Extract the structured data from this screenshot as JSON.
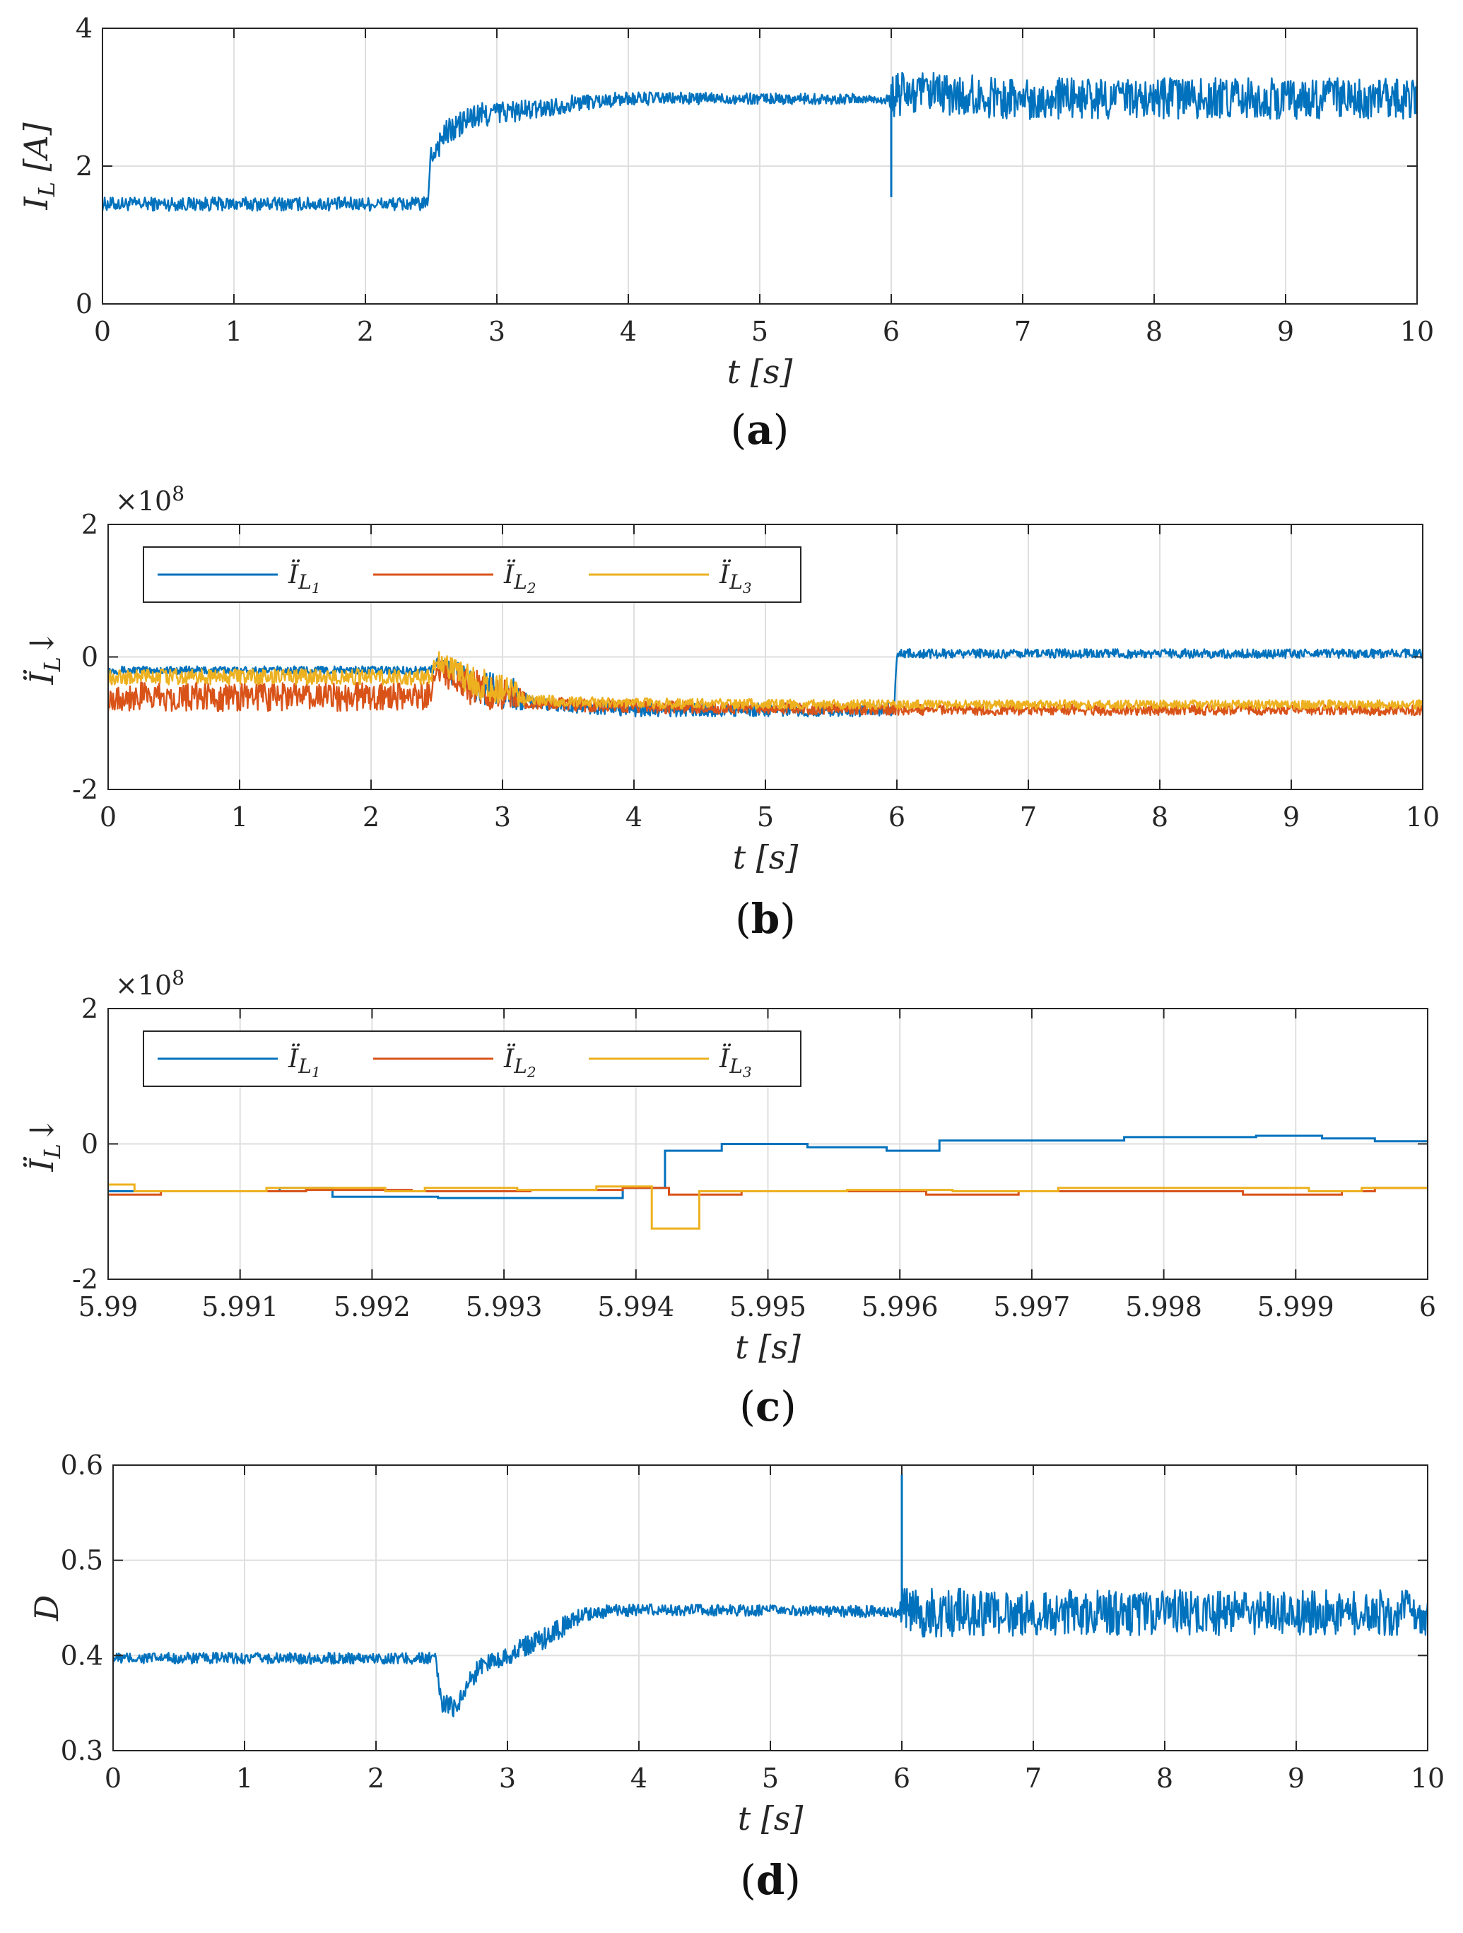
{
  "chart_data": [
    {
      "panel": "a",
      "type": "line",
      "caption": "a",
      "xlabel": "t [s]",
      "ylabel": "I_L [A]",
      "xlim": [
        0,
        10
      ],
      "ylim": [
        0,
        4
      ],
      "xticks": [
        "0",
        "1",
        "2",
        "3",
        "4",
        "5",
        "6",
        "7",
        "8",
        "9",
        "10"
      ],
      "yticks": [
        "0",
        "2",
        "4"
      ],
      "grid": true,
      "series": [
        {
          "name": "I_L",
          "color": "#0072BD",
          "x": [
            0,
            2.47,
            2.5,
            2.6,
            2.8,
            3.0,
            3.3,
            3.6,
            4.0,
            5.0,
            5.98,
            6.0,
            6.05,
            7.0,
            10.0
          ],
          "mid": [
            1.45,
            1.45,
            2.15,
            2.45,
            2.7,
            2.78,
            2.82,
            2.92,
            2.98,
            2.98,
            2.97,
            2.95,
            3.05,
            2.98,
            2.98
          ],
          "band": [
            0.1,
            0.1,
            0.2,
            0.2,
            0.2,
            0.18,
            0.14,
            0.12,
            0.1,
            0.08,
            0.08,
            0.34,
            0.34,
            0.3,
            0.3
          ]
        }
      ],
      "annotations": [
        {
          "type": "spike",
          "x": 6.0,
          "to": 1.55
        }
      ]
    },
    {
      "panel": "b",
      "type": "line",
      "caption": "b",
      "xlabel": "t [s]",
      "ylabel": "Ï_L↓",
      "multiplier": "×10^8",
      "xlim": [
        0,
        10
      ],
      "ylim": [
        -2,
        2
      ],
      "xticks": [
        "0",
        "1",
        "2",
        "3",
        "4",
        "5",
        "6",
        "7",
        "8",
        "9",
        "10"
      ],
      "yticks": [
        "-2",
        "0",
        "2"
      ],
      "grid": true,
      "legend": {
        "placement": "top-left",
        "entries": [
          "Ï_L1",
          "Ï_L2",
          "Ï_L3"
        ]
      },
      "series": [
        {
          "name": "Ï_L1",
          "color": "#0072BD",
          "x": [
            0,
            2.45,
            2.5,
            2.8,
            3.1,
            3.2,
            4.0,
            5.0,
            5.98,
            6.0,
            10.0
          ],
          "mid": [
            -0.2,
            -0.2,
            -0.1,
            -0.45,
            -0.55,
            -0.7,
            -0.8,
            -0.8,
            -0.8,
            0.05,
            0.05
          ],
          "band": [
            0.06,
            0.06,
            0.15,
            0.25,
            0.25,
            0.1,
            0.1,
            0.1,
            0.1,
            0.07,
            0.07
          ]
        },
        {
          "name": "Ï_L2",
          "color": "#D95319",
          "x": [
            0,
            2.45,
            2.5,
            2.8,
            3.1,
            3.2,
            4.0,
            6.0,
            10.0
          ],
          "mid": [
            -0.6,
            -0.6,
            -0.2,
            -0.5,
            -0.6,
            -0.7,
            -0.75,
            -0.8,
            -0.8
          ],
          "band": [
            0.22,
            0.22,
            0.18,
            0.3,
            0.2,
            0.1,
            0.1,
            0.08,
            0.08
          ]
        },
        {
          "name": "Ï_L3",
          "color": "#EDB120",
          "x": [
            0,
            2.45,
            2.5,
            2.8,
            3.1,
            3.2,
            4.0,
            6.0,
            10.0
          ],
          "mid": [
            -0.3,
            -0.3,
            -0.05,
            -0.4,
            -0.55,
            -0.65,
            -0.7,
            -0.72,
            -0.72
          ],
          "band": [
            0.12,
            0.12,
            0.15,
            0.25,
            0.2,
            0.08,
            0.08,
            0.07,
            0.07
          ]
        }
      ]
    },
    {
      "panel": "c",
      "type": "line",
      "caption": "c",
      "xlabel": "t [s]",
      "ylabel": "Ï_L↓",
      "multiplier": "×10^8",
      "xlim": [
        5.99,
        6.0
      ],
      "ylim": [
        -2,
        2
      ],
      "xticks": [
        "5.99",
        "5.991",
        "5.992",
        "5.993",
        "5.994",
        "5.995",
        "5.996",
        "5.997",
        "5.998",
        "5.999",
        "6"
      ],
      "yticks": [
        "-2",
        "0",
        "2"
      ],
      "grid": true,
      "legend": {
        "placement": "top-left",
        "entries": [
          "Ï_L1",
          "Ï_L2",
          "Ï_L3"
        ]
      },
      "series": [
        {
          "name": "Ï_L1",
          "color": "#0072BD",
          "step": true,
          "x": [
            5.99,
            5.9913,
            5.9917,
            5.9925,
            5.9934,
            5.9939,
            5.99422,
            5.99465,
            5.9953,
            5.9959,
            5.9963,
            5.9968,
            5.9977,
            5.9983,
            5.9987,
            5.9992,
            5.9996,
            6.0
          ],
          "y": [
            -0.7,
            -0.65,
            -0.78,
            -0.8,
            -0.8,
            -0.65,
            -0.1,
            0.0,
            -0.05,
            -0.1,
            0.05,
            0.05,
            0.1,
            0.1,
            0.12,
            0.08,
            0.04,
            0.04
          ]
        },
        {
          "name": "Ï_L2",
          "color": "#D95319",
          "step": true,
          "x": [
            5.99,
            5.9904,
            5.9915,
            5.9923,
            5.9932,
            5.9939,
            5.99425,
            5.9948,
            5.9955,
            5.9962,
            5.9969,
            5.9978,
            5.9986,
            5.99935,
            5.9996,
            6.0
          ],
          "y": [
            -0.75,
            -0.7,
            -0.68,
            -0.7,
            -0.68,
            -0.65,
            -0.75,
            -0.7,
            -0.7,
            -0.75,
            -0.7,
            -0.7,
            -0.75,
            -0.7,
            -0.65,
            -0.65
          ]
        },
        {
          "name": "Ï_L3",
          "color": "#EDB120",
          "step": true,
          "x": [
            5.99,
            5.9902,
            5.9912,
            5.9921,
            5.9924,
            5.9931,
            5.9937,
            5.99412,
            5.99448,
            5.9949,
            5.9956,
            5.9964,
            5.9972,
            5.9982,
            5.9991,
            5.9995,
            6.0
          ],
          "y": [
            -0.6,
            -0.7,
            -0.65,
            -0.7,
            -0.65,
            -0.68,
            -0.63,
            -1.25,
            -0.7,
            -0.7,
            -0.68,
            -0.7,
            -0.65,
            -0.65,
            -0.7,
            -0.65,
            -0.65
          ]
        }
      ]
    },
    {
      "panel": "d",
      "type": "line",
      "caption": "d",
      "xlabel": "t [s]",
      "ylabel": "D",
      "xlim": [
        0,
        10
      ],
      "ylim": [
        0.3,
        0.6
      ],
      "xticks": [
        "0",
        "1",
        "2",
        "3",
        "4",
        "5",
        "6",
        "7",
        "8",
        "9",
        "10"
      ],
      "yticks": [
        "0.3",
        "0.4",
        "0.5",
        "0.6"
      ],
      "grid": true,
      "series": [
        {
          "name": "D",
          "color": "#0072BD",
          "x": [
            0,
            2.45,
            2.5,
            2.6,
            2.7,
            2.8,
            3.0,
            3.3,
            3.6,
            4.0,
            5.0,
            5.98,
            6.0,
            6.05,
            7.0,
            10.0
          ],
          "mid": [
            0.397,
            0.397,
            0.35,
            0.345,
            0.37,
            0.39,
            0.4,
            0.42,
            0.445,
            0.448,
            0.447,
            0.446,
            0.445,
            0.445,
            0.445,
            0.445
          ],
          "band": [
            0.006,
            0.006,
            0.01,
            0.01,
            0.012,
            0.01,
            0.01,
            0.012,
            0.008,
            0.006,
            0.006,
            0.006,
            0.026,
            0.026,
            0.024,
            0.024
          ]
        }
      ],
      "annotations": [
        {
          "type": "spike",
          "x": 6.0,
          "to": 0.59
        }
      ]
    }
  ]
}
